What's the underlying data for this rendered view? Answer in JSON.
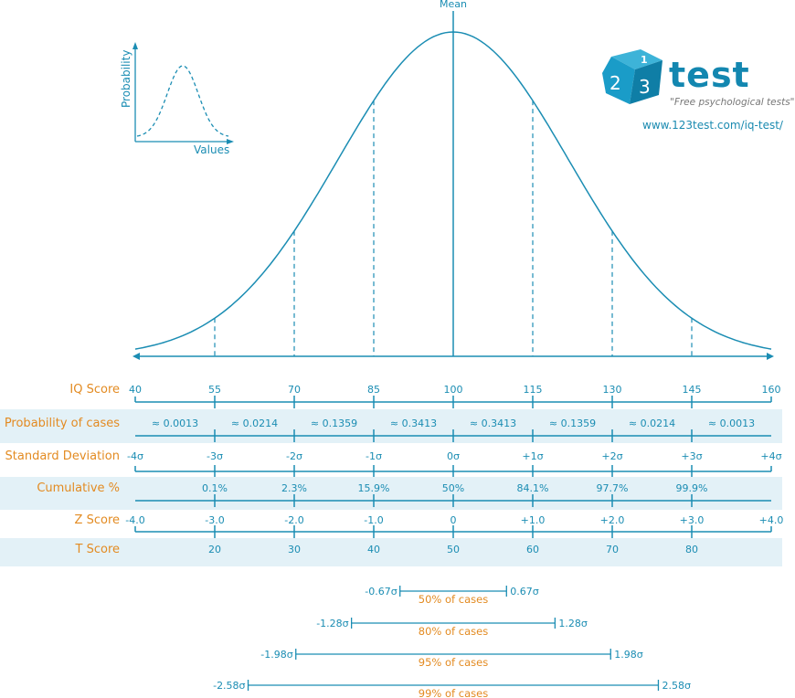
{
  "colors": {
    "line": "#1b8db3",
    "label": "#e38b22",
    "band": "#e3f1f7"
  },
  "mean_label": "Mean",
  "inset": {
    "ylabel": "Probability",
    "xlabel": "Values"
  },
  "logo": {
    "digits": [
      "1",
      "2",
      "3"
    ],
    "word": "test",
    "tagline": "\"Free psychological tests\"",
    "url": "www.123test.com/iq-test/"
  },
  "rows": [
    {
      "label": "IQ Score",
      "band": false,
      "ticks": [
        "40",
        "55",
        "70",
        "85",
        "100",
        "115",
        "130",
        "145",
        "160"
      ]
    },
    {
      "label": "Probability of cases",
      "band": true,
      "segments": [
        "≈ 0.0013",
        "≈ 0.0214",
        "≈ 0.1359",
        "≈ 0.3413",
        "≈ 0.3413",
        "≈ 0.1359",
        "≈ 0.0214",
        "≈ 0.0013"
      ]
    },
    {
      "label": "Standard Deviation",
      "band": false,
      "ticks": [
        "-4σ",
        "-3σ",
        "-2σ",
        "-1σ",
        "0σ",
        "+1σ",
        "+2σ",
        "+3σ",
        "+4σ"
      ]
    },
    {
      "label": "Cumulative %",
      "band": true,
      "ticks": [
        "",
        "0.1%",
        "2.3%",
        "15.9%",
        "50%",
        "84.1%",
        "97.7%",
        "99.9%",
        ""
      ]
    },
    {
      "label": "Z Score",
      "band": false,
      "ticks": [
        "-4.0",
        "-3.0",
        "-2.0",
        "-1.0",
        "0",
        "+1.0",
        "+2.0",
        "+3.0",
        "+4.0"
      ]
    },
    {
      "label": "T Score",
      "band": true,
      "ticks": [
        "",
        "20",
        "30",
        "40",
        "50",
        "60",
        "70",
        "80",
        ""
      ]
    }
  ],
  "intervals": [
    {
      "sd": 0.67,
      "left": "-0.67σ",
      "right": "0.67σ",
      "label": "50% of cases"
    },
    {
      "sd": 1.28,
      "left": "-1.28σ",
      "right": "1.28σ",
      "label": "80% of cases"
    },
    {
      "sd": 1.98,
      "left": "-1.98σ",
      "right": "1.98σ",
      "label": "95% of cases"
    },
    {
      "sd": 2.58,
      "left": "-2.58σ",
      "right": "2.58σ",
      "label": "99% of cases"
    }
  ]
}
